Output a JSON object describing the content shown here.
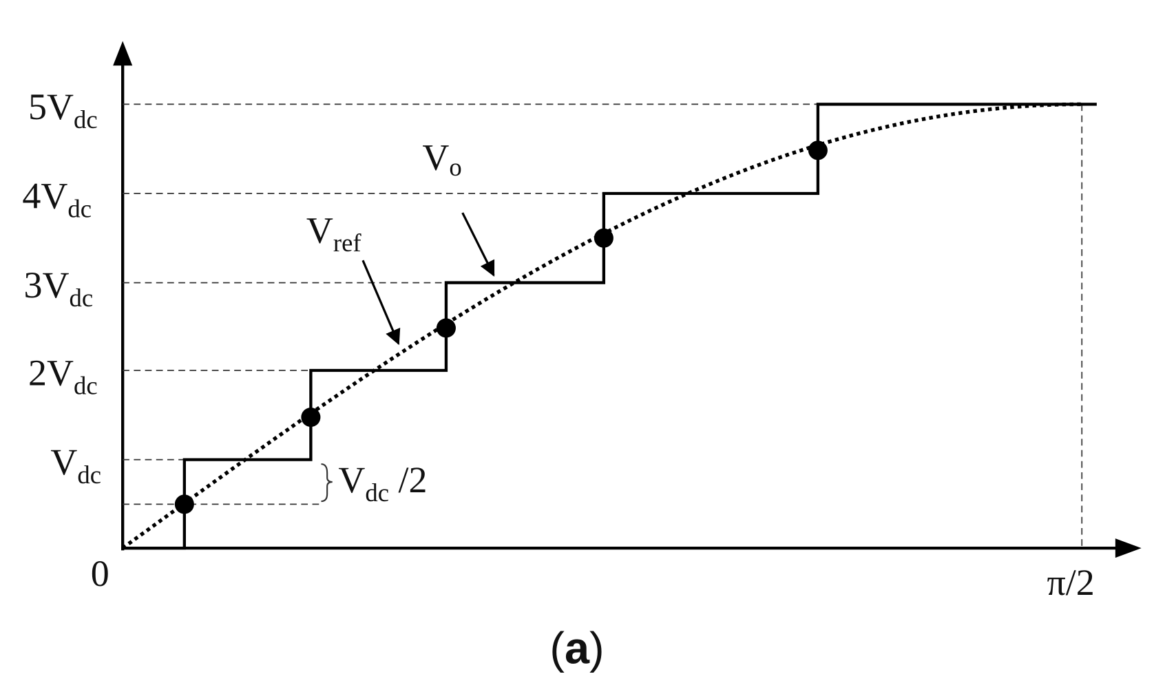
{
  "y_labels": [
    {
      "main": "5V",
      "sub": "dc"
    },
    {
      "main": "4V",
      "sub": "dc"
    },
    {
      "main": "3V",
      "sub": "dc"
    },
    {
      "main": "2V",
      "sub": "dc"
    },
    {
      "main": "V",
      "sub": "dc"
    }
  ],
  "origin_label": "0",
  "x_end_label": "π/2",
  "annotations": {
    "vo": {
      "main": "V",
      "sub": "o"
    },
    "vref": {
      "main": "V",
      "sub": "ref"
    },
    "half": {
      "main": "V",
      "sub": "dc",
      "tail": " /2"
    }
  },
  "caption": {
    "open": "(",
    "letter": "a",
    "close": ")"
  }
}
